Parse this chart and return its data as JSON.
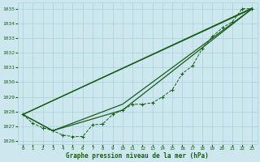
{
  "bg_color": "#cce8ee",
  "grid_color": "#aacfd8",
  "line_color": "#1a5c1a",
  "xlabel": "Graphe pression niveau de la mer (hPa)",
  "ylim": [
    1025.8,
    1035.4
  ],
  "xlim": [
    -0.5,
    23.5
  ],
  "yticks": [
    1026,
    1027,
    1028,
    1029,
    1030,
    1031,
    1032,
    1033,
    1034,
    1035
  ],
  "xticks": [
    0,
    1,
    2,
    3,
    4,
    5,
    6,
    7,
    8,
    9,
    10,
    11,
    12,
    13,
    14,
    15,
    16,
    17,
    18,
    19,
    20,
    21,
    22,
    23
  ],
  "series_main": {
    "x": [
      0,
      1,
      2,
      3,
      4,
      5,
      6,
      7,
      8,
      9,
      10,
      11,
      12,
      13,
      14,
      15,
      16,
      17,
      18,
      19,
      20,
      21,
      22,
      23
    ],
    "y": [
      1027.8,
      1027.2,
      1026.9,
      1026.7,
      1026.4,
      1026.3,
      1026.3,
      1027.1,
      1027.15,
      1027.8,
      1028.1,
      1028.5,
      1028.5,
      1028.6,
      1029.0,
      1029.5,
      1030.6,
      1031.1,
      1032.3,
      1033.1,
      1033.7,
      1034.1,
      1035.0,
      1035.0
    ]
  },
  "line1": {
    "x": [
      0,
      23
    ],
    "y": [
      1027.8,
      1035.0
    ]
  },
  "line2": {
    "x": [
      0,
      23
    ],
    "y": [
      1027.8,
      1035.0
    ]
  },
  "line3_pts": [
    [
      0,
      1027.8
    ],
    [
      3,
      1026.7
    ],
    [
      10,
      1028.1
    ],
    [
      23,
      1035.0
    ]
  ],
  "line4_pts": [
    [
      0,
      1027.8
    ],
    [
      3,
      1026.7
    ],
    [
      10,
      1028.5
    ],
    [
      23,
      1035.0
    ]
  ]
}
